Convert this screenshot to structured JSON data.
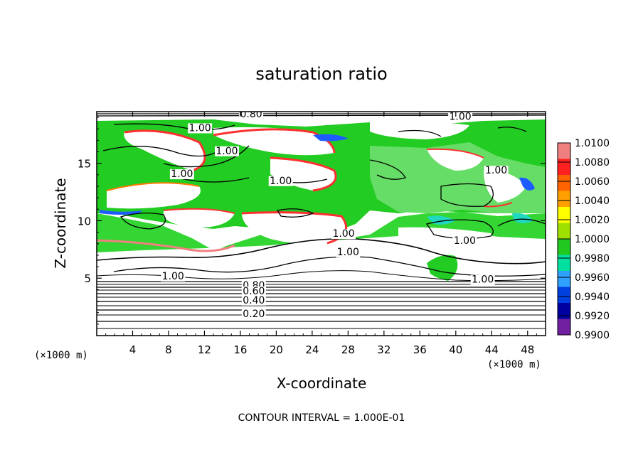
{
  "chart_data": {
    "type": "heatmap",
    "title": "saturation ratio",
    "xlabel": "X-coordinate",
    "ylabel": "Z-coordinate",
    "x_unit_left": "(×1000 m)",
    "x_unit_right": "(×1000 m)",
    "xlim": [
      0,
      50
    ],
    "ylim": [
      0,
      19.5
    ],
    "x_ticks": [
      4,
      8,
      12,
      16,
      20,
      24,
      28,
      32,
      36,
      40,
      44,
      48
    ],
    "y_ticks": [
      5,
      10,
      15
    ],
    "footer": "CONTOUR INTERVAL = 1.000E-01",
    "colorbar": {
      "levels": [
        "1.0100",
        "1.0080",
        "1.0060",
        "1.0040",
        "1.0020",
        "1.0000",
        "0.9980",
        "0.9960",
        "0.9940",
        "0.9920",
        "0.9900"
      ],
      "colors": [
        "#f08080",
        "#ff2020",
        "#ff6400",
        "#ffa000",
        "#ffff00",
        "#a0e000",
        "#20c820",
        "#00e0a0",
        "#30a0ff",
        "#0040e0",
        "#0000a0",
        "#7020a0"
      ]
    },
    "contour_labels": [
      {
        "text": "1.00",
        "x": 11.5,
        "z": 17.8
      },
      {
        "text": "1.00",
        "x": 14.5,
        "z": 15.8
      },
      {
        "text": "1.00",
        "x": 9.5,
        "z": 13.8
      },
      {
        "text": "1.00",
        "x": 20.5,
        "z": 13.2
      },
      {
        "text": "1.00",
        "x": 27.5,
        "z": 8.6
      },
      {
        "text": "1.00",
        "x": 28.0,
        "z": 7.0
      },
      {
        "text": "1.00",
        "x": 41.0,
        "z": 8.0
      },
      {
        "text": "1.00",
        "x": 44.5,
        "z": 14.1
      },
      {
        "text": "1.00",
        "x": 40.5,
        "z": 18.8
      },
      {
        "text": "1.00",
        "x": 8.5,
        "z": 4.9
      },
      {
        "text": "1.00",
        "x": 43.0,
        "z": 4.6
      },
      {
        "text": "0.80",
        "x": 17.2,
        "z": 19.0
      },
      {
        "text": "0.80",
        "x": 17.5,
        "z": 4.1
      },
      {
        "text": "0.60",
        "x": 17.5,
        "z": 3.6
      },
      {
        "text": "0.40",
        "x": 17.5,
        "z": 2.8
      },
      {
        "text": "0.20",
        "x": 17.5,
        "z": 1.6
      }
    ]
  }
}
